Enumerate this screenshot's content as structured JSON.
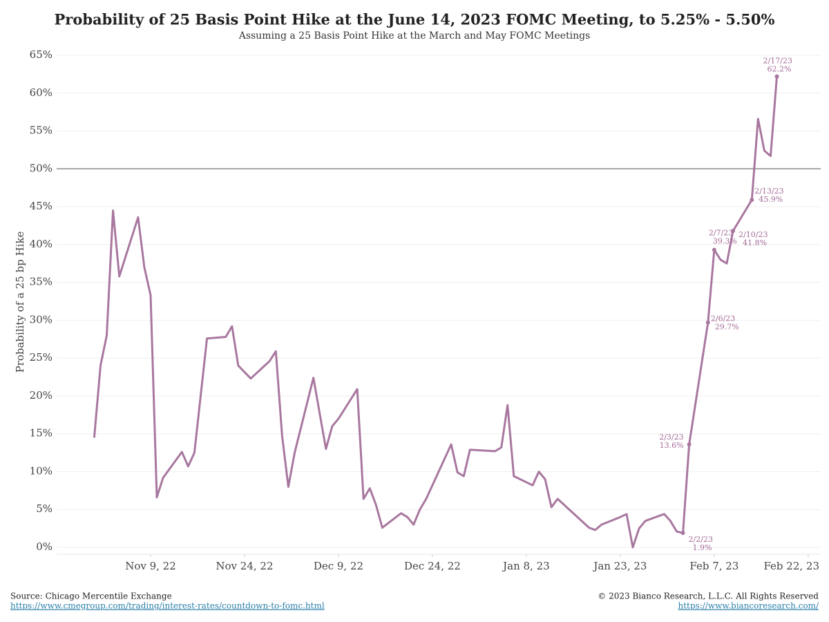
{
  "chart_data": {
    "type": "line",
    "title": "Probability of 25 Basis Point Hike at the June 14, 2023 FOMC Meeting, to 5.25% - 5.50%",
    "subtitle": "Assuming a 25 Basis Point Hike at the March and May FOMC Meetings",
    "y_label": "Probability of a 25 bp Hike",
    "x": [
      "2022-10-31",
      "2022-11-01",
      "2022-11-02",
      "2022-11-03",
      "2022-11-04",
      "2022-11-07",
      "2022-11-08",
      "2022-11-09",
      "2022-11-10",
      "2022-11-11",
      "2022-11-14",
      "2022-11-15",
      "2022-11-16",
      "2022-11-18",
      "2022-11-21",
      "2022-11-22",
      "2022-11-23",
      "2022-11-25",
      "2022-11-28",
      "2022-11-29",
      "2022-11-30",
      "2022-12-01",
      "2022-12-02",
      "2022-12-05",
      "2022-12-07",
      "2022-12-08",
      "2022-12-09",
      "2022-12-12",
      "2022-12-13",
      "2022-12-14",
      "2022-12-15",
      "2022-12-16",
      "2022-12-19",
      "2022-12-20",
      "2022-12-21",
      "2022-12-22",
      "2022-12-23",
      "2022-12-27",
      "2022-12-28",
      "2022-12-29",
      "2022-12-30",
      "2023-01-03",
      "2023-01-04",
      "2023-01-05",
      "2023-01-06",
      "2023-01-09",
      "2023-01-10",
      "2023-01-11",
      "2023-01-12",
      "2023-01-13",
      "2023-01-18",
      "2023-01-19",
      "2023-01-20",
      "2023-01-23",
      "2023-01-24",
      "2023-01-25",
      "2023-01-26",
      "2023-01-27",
      "2023-01-30",
      "2023-01-31",
      "2023-02-01",
      "2023-02-02",
      "2023-02-03",
      "2023-02-06",
      "2023-02-07",
      "2023-02-08",
      "2023-02-09",
      "2023-02-10",
      "2023-02-13",
      "2023-02-14",
      "2023-02-15",
      "2023-02-16",
      "2023-02-17"
    ],
    "series": [
      {
        "name": "Probability",
        "color": "#a8779f",
        "values": [
          14.5,
          24,
          28,
          44.5,
          35.8,
          43.6,
          37,
          33.3,
          6.6,
          9.2,
          12.6,
          10.7,
          12.5,
          27.6,
          27.8,
          29.2,
          24,
          22.3,
          24.6,
          25.9,
          14.7,
          8,
          12.5,
          22.4,
          13,
          16,
          17,
          20.9,
          6.4,
          7.8,
          5.6,
          2.6,
          4.5,
          4,
          3,
          5,
          6.4,
          13.6,
          9.9,
          9.4,
          12.9,
          12.7,
          13.2,
          18.8,
          9.4,
          8.2,
          10,
          9,
          5.3,
          6.4,
          2.6,
          2.3,
          3,
          4,
          4.4,
          0,
          2.5,
          3.5,
          4.4,
          3.5,
          2.1,
          1.9,
          13.6,
          29.7,
          39.3,
          38,
          37.5,
          41.8,
          45.9,
          56.6,
          52.4,
          51.7,
          62.2
        ]
      }
    ],
    "ylim": [
      0,
      65
    ],
    "yticks": [
      {
        "value": 0,
        "label": "0%"
      },
      {
        "value": 5,
        "label": "5%"
      },
      {
        "value": 10,
        "label": "10%"
      },
      {
        "value": 15,
        "label": "15%"
      },
      {
        "value": 20,
        "label": "20%"
      },
      {
        "value": 25,
        "label": "25%"
      },
      {
        "value": 30,
        "label": "30%"
      },
      {
        "value": 35,
        "label": "35%"
      },
      {
        "value": 40,
        "label": "40%"
      },
      {
        "value": 45,
        "label": "45%"
      },
      {
        "value": 50,
        "label": "50%"
      },
      {
        "value": 55,
        "label": "55%"
      },
      {
        "value": 60,
        "label": "60%"
      },
      {
        "value": 65,
        "label": "65%"
      }
    ],
    "xlim": [
      "2022-10-25",
      "2023-02-24"
    ],
    "xticks": [
      {
        "value": "2022-11-09",
        "label": "Nov 9, 22"
      },
      {
        "value": "2022-11-24",
        "label": "Nov 24, 22"
      },
      {
        "value": "2022-12-09",
        "label": "Dec 9, 22"
      },
      {
        "value": "2022-12-24",
        "label": "Dec 24, 22"
      },
      {
        "value": "2023-01-08",
        "label": "Jan 8, 23"
      },
      {
        "value": "2023-01-23",
        "label": "Jan 23, 23"
      },
      {
        "value": "2023-02-07",
        "label": "Feb 7, 23"
      },
      {
        "value": "2023-02-22",
        "label": "Feb 22, 23"
      }
    ],
    "grid": true,
    "reference_line": 50,
    "annotations": [
      {
        "x": "2023-02-02",
        "labels": [
          "2/2/23",
          "1.9%"
        ]
      },
      {
        "x": "2023-02-03",
        "labels": [
          "2/3/23",
          "13.6%"
        ]
      },
      {
        "x": "2023-02-06",
        "labels": [
          "2/6/23",
          "29.7%"
        ]
      },
      {
        "x": "2023-02-07",
        "labels": [
          "2/7/23",
          "39.3%"
        ]
      },
      {
        "x": "2023-02-10",
        "labels": [
          "2/10/23",
          "41.8%"
        ]
      },
      {
        "x": "2023-02-13",
        "labels": [
          "2/13/23",
          "45.9%"
        ]
      },
      {
        "x": "2023-02-17",
        "labels": [
          "2/17/23",
          "62.2%"
        ]
      }
    ],
    "source": "Source: Chicago Mercentile Exchange",
    "source_url": "https://www.cmegroup.com/trading/interest-rates/countdown-to-fomc.html",
    "copyright": "© 2023 Bianco Research, L.L.C. All Rights Reserved",
    "site_url": "https://www.biancoresearch.com/"
  }
}
